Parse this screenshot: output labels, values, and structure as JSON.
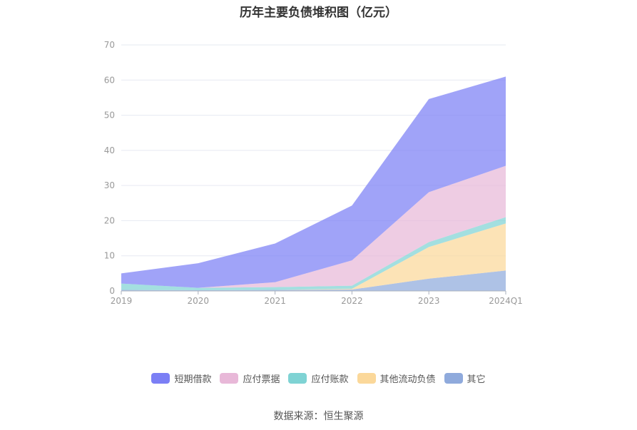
{
  "chart_data": {
    "type": "area",
    "stacked": true,
    "title": "历年主要负债堆积图（亿元）",
    "categories": [
      "2019",
      "2020",
      "2021",
      "2022",
      "2023",
      "2024Q1"
    ],
    "ylim": [
      0,
      70
    ],
    "yticks": [
      "0",
      "10",
      "20",
      "30",
      "40",
      "50",
      "60",
      "70"
    ],
    "grid": true,
    "legend_position": "bottom",
    "series": [
      {
        "name": "其它",
        "color": "#8faadc",
        "values": [
          0.3,
          0.2,
          0.3,
          0.4,
          3.5,
          5.8
        ]
      },
      {
        "name": "其他流动负债",
        "color": "#fbd89a",
        "values": [
          0.0,
          0.0,
          0.0,
          0.2,
          9.0,
          13.4
        ]
      },
      {
        "name": "应付账款",
        "color": "#7fd3d4",
        "values": [
          1.8,
          0.7,
          0.8,
          0.9,
          1.4,
          1.8
        ]
      },
      {
        "name": "应付票据",
        "color": "#e8b8d8",
        "values": [
          0.0,
          0.0,
          1.4,
          7.2,
          14.2,
          14.6
        ]
      },
      {
        "name": "短期借款",
        "color": "#7b7ff5",
        "values": [
          2.9,
          7.0,
          11.0,
          15.6,
          26.5,
          25.4
        ]
      }
    ]
  },
  "legend_order": [
    {
      "name": "短期借款",
      "color": "#7b7ff5"
    },
    {
      "name": "应付票据",
      "color": "#e8b8d8"
    },
    {
      "name": "应付账款",
      "color": "#7fd3d4"
    },
    {
      "name": "其他流动负债",
      "color": "#fbd89a"
    },
    {
      "name": "其它",
      "color": "#8faadc"
    }
  ],
  "source": "数据来源：恒生聚源"
}
